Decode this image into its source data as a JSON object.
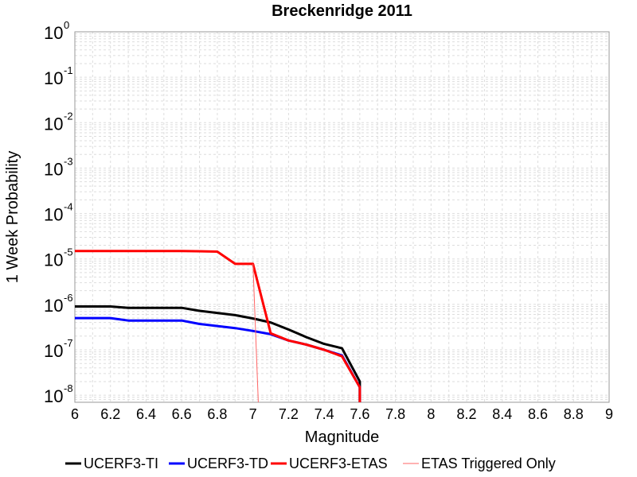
{
  "chart_data": {
    "type": "line",
    "title": "Breckenridge 2011",
    "xlabel": "Magnitude",
    "ylabel": "1 Week Probability",
    "x_scale": "linear",
    "y_scale": "log",
    "xlim": [
      6,
      9
    ],
    "ylim": [
      7e-09,
      1
    ],
    "xticks": [
      "6",
      "6.2",
      "6.4",
      "6.6",
      "6.8",
      "7",
      "7.2",
      "7.4",
      "7.6",
      "7.8",
      "8",
      "8.2",
      "8.4",
      "8.6",
      "8.8",
      "9"
    ],
    "yticks": [
      {
        "base": "10",
        "exp": "0",
        "value": 1
      },
      {
        "base": "10",
        "exp": "-1",
        "value": 0.1
      },
      {
        "base": "10",
        "exp": "-2",
        "value": 0.01
      },
      {
        "base": "10",
        "exp": "-3",
        "value": 0.001
      },
      {
        "base": "10",
        "exp": "-4",
        "value": 0.0001
      },
      {
        "base": "10",
        "exp": "-5",
        "value": 1e-05
      },
      {
        "base": "10",
        "exp": "-6",
        "value": 1e-06
      },
      {
        "base": "10",
        "exp": "-7",
        "value": 1e-07
      },
      {
        "base": "10",
        "exp": "-8",
        "value": 1e-08
      }
    ],
    "grid": true,
    "legend_position": "bottom",
    "series": [
      {
        "name": "UCERF3-TI",
        "color": "#000000",
        "style": "thick",
        "x": [
          6.0,
          6.2,
          6.3,
          6.6,
          6.7,
          6.9,
          7.0,
          7.1,
          7.2,
          7.3,
          7.4,
          7.5,
          7.6,
          7.6
        ],
        "y": [
          9e-07,
          9e-07,
          8.4e-07,
          8.4e-07,
          7.2e-07,
          5.8e-07,
          4.9e-07,
          4e-07,
          2.8e-07,
          1.9e-07,
          1.35e-07,
          1.08e-07,
          2e-08,
          7e-09
        ]
      },
      {
        "name": "UCERF3-TD",
        "color": "#0000ff",
        "style": "thick",
        "x": [
          6.0,
          6.2,
          6.3,
          6.6,
          6.7,
          6.9,
          7.0,
          7.1,
          7.2,
          7.3,
          7.4,
          7.5,
          7.6,
          7.6
        ],
        "y": [
          5e-07,
          5e-07,
          4.4e-07,
          4.4e-07,
          3.7e-07,
          3e-07,
          2.6e-07,
          2.2e-07,
          1.6e-07,
          1.3e-07,
          1e-07,
          7.5e-08,
          1.5e-08,
          7e-09
        ]
      },
      {
        "name": "UCERF3-ETAS",
        "color": "#ff0000",
        "style": "thick",
        "x": [
          6.0,
          6.6,
          6.8,
          6.9,
          7.0,
          7.1,
          7.2,
          7.3,
          7.4,
          7.5,
          7.6,
          7.6
        ],
        "y": [
          1.5e-05,
          1.5e-05,
          1.45e-05,
          7.8e-06,
          7.8e-06,
          2.3e-07,
          1.6e-07,
          1.3e-07,
          1e-07,
          7.2e-08,
          1.5e-08,
          7e-09
        ]
      },
      {
        "name": "ETAS Triggered Only",
        "color": "#ff6666",
        "style": "thin",
        "x": [
          7.0,
          7.03
        ],
        "y": [
          7.8e-06,
          7e-09
        ]
      }
    ]
  }
}
